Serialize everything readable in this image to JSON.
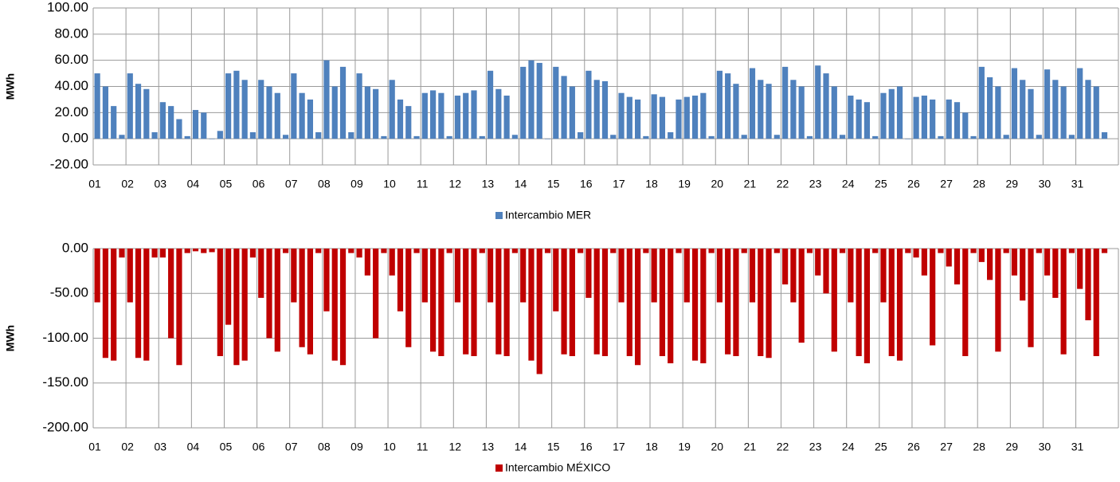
{
  "chart_data": [
    {
      "type": "bar",
      "y_label": "MWh",
      "x": [
        1.125,
        1.375,
        1.625,
        1.875,
        2.125,
        2.375,
        2.625,
        2.875,
        3.125,
        3.375,
        3.625,
        3.875,
        4.125,
        4.375,
        4.625,
        4.875,
        5.125,
        5.375,
        5.625,
        5.875,
        6.125,
        6.375,
        6.625,
        6.875,
        7.125,
        7.375,
        7.625,
        7.875,
        8.125,
        8.375,
        8.625,
        8.875,
        9.125,
        9.375,
        9.625,
        9.875,
        10.125,
        10.375,
        10.625,
        10.875,
        11.125,
        11.375,
        11.625,
        11.875,
        12.125,
        12.375,
        12.625,
        12.875,
        13.125,
        13.375,
        13.625,
        13.875,
        14.125,
        14.375,
        14.625,
        14.875,
        15.125,
        15.375,
        15.625,
        15.875,
        16.125,
        16.375,
        16.625,
        16.875,
        17.125,
        17.375,
        17.625,
        17.875,
        18.125,
        18.375,
        18.625,
        18.875,
        19.125,
        19.375,
        19.625,
        19.875,
        20.125,
        20.375,
        20.625,
        20.875,
        21.125,
        21.375,
        21.625,
        21.875,
        22.125,
        22.375,
        22.625,
        22.875,
        23.125,
        23.375,
        23.625,
        23.875,
        24.125,
        24.375,
        24.625,
        24.875,
        25.125,
        25.375,
        25.625,
        25.875,
        26.125,
        26.375,
        26.625,
        26.875,
        27.125,
        27.375,
        27.625,
        27.875,
        28.125,
        28.375,
        28.625,
        28.875,
        29.125,
        29.375,
        29.625,
        29.875,
        30.125,
        30.375,
        30.625,
        30.875,
        31.125,
        31.375,
        31.625,
        31.875
      ],
      "series": [
        {
          "name": "Intercambio MER",
          "color": "#4f81bd",
          "values": [
            50,
            40,
            25,
            3,
            50,
            42,
            38,
            5,
            28,
            25,
            15,
            2,
            22,
            20,
            0,
            6,
            50,
            52,
            45,
            5,
            45,
            40,
            35,
            3,
            50,
            35,
            30,
            5,
            60,
            40,
            55,
            5,
            50,
            40,
            38,
            2,
            45,
            30,
            25,
            2,
            35,
            37,
            35,
            2,
            33,
            35,
            37,
            2,
            52,
            38,
            33,
            3,
            55,
            60,
            58,
            0,
            55,
            48,
            40,
            5,
            52,
            45,
            44,
            3,
            35,
            32,
            30,
            2,
            34,
            32,
            5,
            30,
            32,
            33,
            35,
            2,
            52,
            50,
            42,
            3,
            54,
            45,
            42,
            3,
            55,
            45,
            40,
            2,
            56,
            50,
            40,
            3,
            33,
            30,
            28,
            2,
            35,
            38,
            40,
            0,
            32,
            33,
            30,
            2,
            30,
            28,
            20,
            2,
            55,
            47,
            40,
            3,
            54,
            45,
            38,
            3,
            53,
            45,
            40,
            3,
            54,
            45,
            40,
            5
          ]
        }
      ],
      "xlim": [
        1,
        32.3
      ],
      "ylim": [
        -20,
        100
      ],
      "xticks": [
        {
          "value": 1,
          "label": "01"
        },
        {
          "value": 2,
          "label": "02"
        },
        {
          "value": 3,
          "label": "03"
        },
        {
          "value": 4,
          "label": "04"
        },
        {
          "value": 5,
          "label": "05"
        },
        {
          "value": 6,
          "label": "06"
        },
        {
          "value": 7,
          "label": "07"
        },
        {
          "value": 8,
          "label": "08"
        },
        {
          "value": 9,
          "label": "09"
        },
        {
          "value": 10,
          "label": "10"
        },
        {
          "value": 11,
          "label": "11"
        },
        {
          "value": 12,
          "label": "12"
        },
        {
          "value": 13,
          "label": "13"
        },
        {
          "value": 14,
          "label": "14"
        },
        {
          "value": 15,
          "label": "15"
        },
        {
          "value": 16,
          "label": "16"
        },
        {
          "value": 17,
          "label": "17"
        },
        {
          "value": 18,
          "label": "18"
        },
        {
          "value": 19,
          "label": "19"
        },
        {
          "value": 20,
          "label": "20"
        },
        {
          "value": 21,
          "label": "21"
        },
        {
          "value": 22,
          "label": "22"
        },
        {
          "value": 23,
          "label": "23"
        },
        {
          "value": 24,
          "label": "24"
        },
        {
          "value": 25,
          "label": "25"
        },
        {
          "value": 26,
          "label": "26"
        },
        {
          "value": 27,
          "label": "27"
        },
        {
          "value": 28,
          "label": "28"
        },
        {
          "value": 29,
          "label": "29"
        },
        {
          "value": 30,
          "label": "30"
        },
        {
          "value": 31,
          "label": "31"
        }
      ],
      "yticks": [
        {
          "value": 100,
          "label": "100.00"
        },
        {
          "value": 80,
          "label": "80.00"
        },
        {
          "value": 60,
          "label": "60.00"
        },
        {
          "value": 40,
          "label": "40.00"
        },
        {
          "value": 20,
          "label": "20.00"
        },
        {
          "value": 0,
          "label": "0.00"
        },
        {
          "value": -20,
          "label": "-20.00"
        }
      ],
      "grid": true,
      "legend": "bottom"
    },
    {
      "type": "bar",
      "y_label": "MWh",
      "x": [
        1.125,
        1.375,
        1.625,
        1.875,
        2.125,
        2.375,
        2.625,
        2.875,
        3.125,
        3.375,
        3.625,
        3.875,
        4.125,
        4.375,
        4.625,
        4.875,
        5.125,
        5.375,
        5.625,
        5.875,
        6.125,
        6.375,
        6.625,
        6.875,
        7.125,
        7.375,
        7.625,
        7.875,
        8.125,
        8.375,
        8.625,
        8.875,
        9.125,
        9.375,
        9.625,
        9.875,
        10.125,
        10.375,
        10.625,
        10.875,
        11.125,
        11.375,
        11.625,
        11.875,
        12.125,
        12.375,
        12.625,
        12.875,
        13.125,
        13.375,
        13.625,
        13.875,
        14.125,
        14.375,
        14.625,
        14.875,
        15.125,
        15.375,
        15.625,
        15.875,
        16.125,
        16.375,
        16.625,
        16.875,
        17.125,
        17.375,
        17.625,
        17.875,
        18.125,
        18.375,
        18.625,
        18.875,
        19.125,
        19.375,
        19.625,
        19.875,
        20.125,
        20.375,
        20.625,
        20.875,
        21.125,
        21.375,
        21.625,
        21.875,
        22.125,
        22.375,
        22.625,
        22.875,
        23.125,
        23.375,
        23.625,
        23.875,
        24.125,
        24.375,
        24.625,
        24.875,
        25.125,
        25.375,
        25.625,
        25.875,
        26.125,
        26.375,
        26.625,
        26.875,
        27.125,
        27.375,
        27.625,
        27.875,
        28.125,
        28.375,
        28.625,
        28.875,
        29.125,
        29.375,
        29.625,
        29.875,
        30.125,
        30.375,
        30.625,
        30.875,
        31.125,
        31.375,
        31.625,
        31.875
      ],
      "series": [
        {
          "name": "Intercambio MÉXICO",
          "color": "#c00000",
          "values": [
            -60,
            -122,
            -125,
            -10,
            -60,
            -122,
            -125,
            -10,
            -10,
            -100,
            -130,
            -5,
            -3,
            -5,
            -4,
            -120,
            -85,
            -130,
            -125,
            -10,
            -55,
            -100,
            -115,
            -5,
            -60,
            -110,
            -118,
            -5,
            -70,
            -125,
            -130,
            -5,
            -10,
            -30,
            -100,
            -5,
            -30,
            -70,
            -110,
            -5,
            -60,
            -115,
            -120,
            -5,
            -60,
            -118,
            -120,
            -5,
            -60,
            -118,
            -120,
            -5,
            -60,
            -125,
            -140,
            -5,
            -70,
            -118,
            -120,
            -5,
            -55,
            -118,
            -120,
            -5,
            -60,
            -120,
            -130,
            -5,
            -60,
            -120,
            -128,
            -5,
            -60,
            -125,
            -128,
            -5,
            -60,
            -118,
            -120,
            -5,
            -60,
            -120,
            -122,
            -5,
            -40,
            -60,
            -105,
            -5,
            -30,
            -50,
            -115,
            -5,
            -60,
            -120,
            -128,
            -5,
            -60,
            -120,
            -125,
            -5,
            -10,
            -30,
            -108,
            -5,
            -20,
            -40,
            -120,
            -5,
            -15,
            -35,
            -115,
            -5,
            -30,
            -58,
            -110,
            -5,
            -30,
            -55,
            -118,
            -5,
            -45,
            -80,
            -120,
            -5
          ]
        }
      ],
      "xlim": [
        1,
        32.3
      ],
      "ylim": [
        -200,
        0
      ],
      "xticks": [
        {
          "value": 1,
          "label": "01"
        },
        {
          "value": 2,
          "label": "02"
        },
        {
          "value": 3,
          "label": "03"
        },
        {
          "value": 4,
          "label": "04"
        },
        {
          "value": 5,
          "label": "05"
        },
        {
          "value": 6,
          "label": "06"
        },
        {
          "value": 7,
          "label": "07"
        },
        {
          "value": 8,
          "label": "08"
        },
        {
          "value": 9,
          "label": "09"
        },
        {
          "value": 10,
          "label": "10"
        },
        {
          "value": 11,
          "label": "11"
        },
        {
          "value": 12,
          "label": "12"
        },
        {
          "value": 13,
          "label": "13"
        },
        {
          "value": 14,
          "label": "14"
        },
        {
          "value": 15,
          "label": "15"
        },
        {
          "value": 16,
          "label": "16"
        },
        {
          "value": 17,
          "label": "17"
        },
        {
          "value": 18,
          "label": "18"
        },
        {
          "value": 19,
          "label": "19"
        },
        {
          "value": 20,
          "label": "20"
        },
        {
          "value": 21,
          "label": "21"
        },
        {
          "value": 22,
          "label": "22"
        },
        {
          "value": 23,
          "label": "23"
        },
        {
          "value": 24,
          "label": "24"
        },
        {
          "value": 25,
          "label": "25"
        },
        {
          "value": 26,
          "label": "26"
        },
        {
          "value": 27,
          "label": "27"
        },
        {
          "value": 28,
          "label": "28"
        },
        {
          "value": 29,
          "label": "29"
        },
        {
          "value": 30,
          "label": "30"
        },
        {
          "value": 31,
          "label": "31"
        }
      ],
      "yticks": [
        {
          "value": 0,
          "label": "0.00"
        },
        {
          "value": -50,
          "label": "-50.00"
        },
        {
          "value": -100,
          "label": "-100.00"
        },
        {
          "value": -150,
          "label": "-150.00"
        },
        {
          "value": -200,
          "label": "-200.00"
        }
      ],
      "grid": true,
      "legend": "bottom"
    }
  ]
}
